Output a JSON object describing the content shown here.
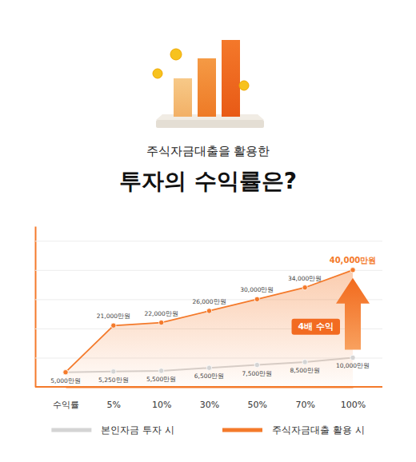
{
  "chart_data": {
    "type": "line",
    "subtitle": "주식자금대출을 활용한",
    "title": "투자의 수익률은?",
    "x_label": "수익률",
    "categories": [
      null,
      "5%",
      "10%",
      "30%",
      "50%",
      "70%",
      "100%"
    ],
    "series": [
      {
        "name": "본인자금 투자 시",
        "color": "#d4d4d4",
        "marker": "circle",
        "values": [
          5000,
          5250,
          5500,
          6500,
          7500,
          8500,
          10000
        ],
        "value_labels": [
          "5,000만원",
          "5,250만원",
          "5,500만원",
          "6,500만원",
          "7,500만원",
          "8,500만원",
          "10,000만원"
        ]
      },
      {
        "name": "주식자금대출 활용 시",
        "color": "#f47a2b",
        "type": "area",
        "marker": "circle",
        "values": [
          5000,
          21000,
          22000,
          26000,
          30000,
          34000,
          40000
        ],
        "value_labels": [
          null,
          "21,000만원",
          "22,000만원",
          "26,000만원",
          "30,000만원",
          "34,000만원",
          "40,000만원"
        ]
      }
    ],
    "ylim": [
      0,
      55000
    ],
    "yticks": [
      0,
      10000,
      20000,
      30000,
      40000,
      50000
    ],
    "grid": true,
    "tick_labels": "x",
    "data_labels": true,
    "annotation": "4배 수익",
    "legend": "bottom"
  }
}
